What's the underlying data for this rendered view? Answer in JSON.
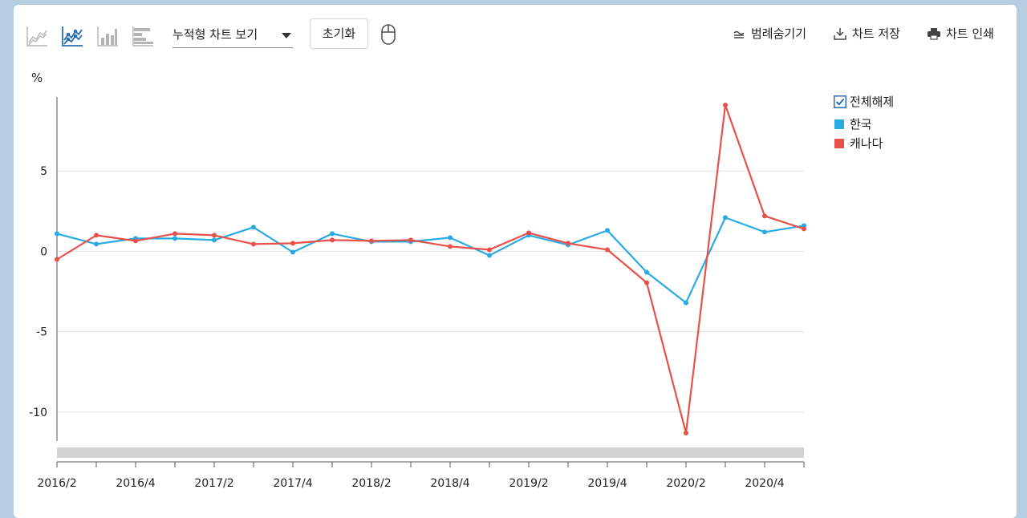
{
  "toolbar": {
    "chart_type_icons": [
      {
        "name": "line-chart-icon",
        "active": false
      },
      {
        "name": "multi-line-chart-icon",
        "active": true
      },
      {
        "name": "bar-chart-icon",
        "active": false
      },
      {
        "name": "horizontal-bar-chart-icon",
        "active": false
      }
    ],
    "view_select": "누적형 차트 보기",
    "reset_label": "초기화",
    "hide_legend_label": "범례숨기기",
    "save_chart_label": "차트 저장",
    "print_chart_label": "차트 인쇄"
  },
  "legend": {
    "toggle_all_label": "전체해제",
    "toggle_all_checked": true
  },
  "colors": {
    "korea": "#29abe2",
    "canada": "#e8514a",
    "accent": "#2a6fb0",
    "grid": "#e3e3e3",
    "scrollbar": "#d3d3d3"
  },
  "chart_data": {
    "type": "line",
    "ylabel": "%",
    "xlabel": "",
    "ylim": [
      -11.8,
      9.6
    ],
    "yticks": [
      -10,
      -5,
      0,
      5
    ],
    "grid": true,
    "legend_position": "right",
    "x": [
      "2016/2",
      "2016/3",
      "2016/4",
      "2017/1",
      "2017/2",
      "2017/3",
      "2017/4",
      "2018/1",
      "2018/2",
      "2018/3",
      "2018/4",
      "2019/1",
      "2019/2",
      "2019/3",
      "2019/4",
      "2020/1",
      "2020/2",
      "2020/3",
      "2020/4",
      "2021/1"
    ],
    "xtick_labels": [
      "2016/2",
      "2016/4",
      "2017/2",
      "2017/4",
      "2018/2",
      "2018/4",
      "2019/2",
      "2019/4",
      "2020/2",
      "2020/4"
    ],
    "series": [
      {
        "name": "한국",
        "values": [
          1.1,
          0.45,
          0.8,
          0.8,
          0.7,
          1.5,
          -0.05,
          1.1,
          0.6,
          0.6,
          0.85,
          -0.25,
          1.0,
          0.4,
          1.3,
          -1.3,
          -3.2,
          2.1,
          1.2,
          1.6
        ]
      },
      {
        "name": "캐나다",
        "values": [
          -0.5,
          1.0,
          0.65,
          1.1,
          1.0,
          0.45,
          0.5,
          0.7,
          0.65,
          0.7,
          0.3,
          0.1,
          1.15,
          0.5,
          0.1,
          -1.95,
          -11.3,
          9.1,
          2.2,
          1.4
        ]
      }
    ]
  }
}
